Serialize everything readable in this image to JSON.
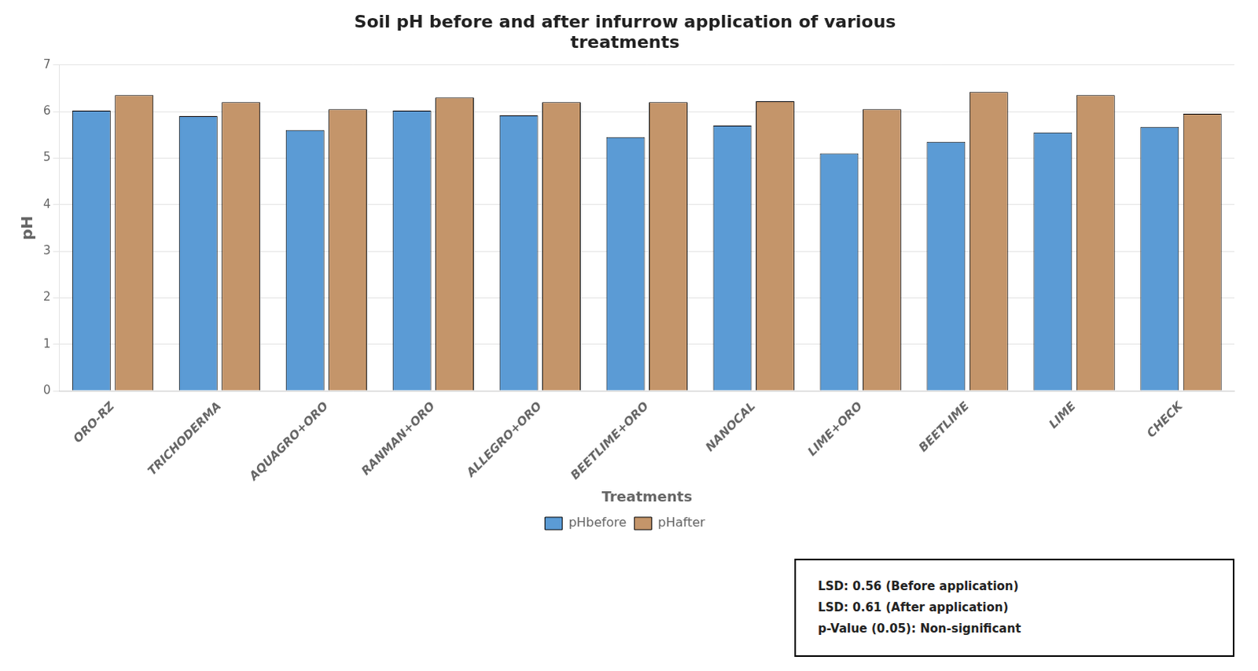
{
  "chart_data": {
    "type": "bar",
    "title": "Soil pH before and after infurrow application of various\ntreatments",
    "categories": [
      "ORO-RZ",
      "TRICHODERMA",
      "AQUAGRO+ORO",
      "RANMAN+ORO",
      "ALLEGRO+ORO",
      "BEETLIME+ORO",
      "NANOCAL",
      "LIME+ORO",
      "BEETLIME",
      "LIME",
      "CHECK"
    ],
    "series": [
      {
        "name": "pHbefore",
        "color": "#5B9BD5",
        "values": [
          6.02,
          5.9,
          5.6,
          6.02,
          5.92,
          5.45,
          5.7,
          5.1,
          5.35,
          5.55,
          5.67
        ]
      },
      {
        "name": "pHafter",
        "color": "#C4956A",
        "values": [
          6.35,
          6.2,
          6.05,
          6.3,
          6.2,
          6.2,
          6.22,
          6.05,
          6.42,
          6.35,
          5.95
        ]
      }
    ],
    "xlabel": "Treatments",
    "ylabel": "pH",
    "ylim": [
      0,
      7
    ],
    "yticks": [
      0,
      1,
      2,
      3,
      4,
      5,
      6,
      7
    ],
    "grid": true,
    "legend": "bottom",
    "annotations": [
      "LSD: 0.56 (Before application)",
      "LSD: 0.61 (After application)",
      "p-Value (0.05): Non-significant"
    ]
  }
}
